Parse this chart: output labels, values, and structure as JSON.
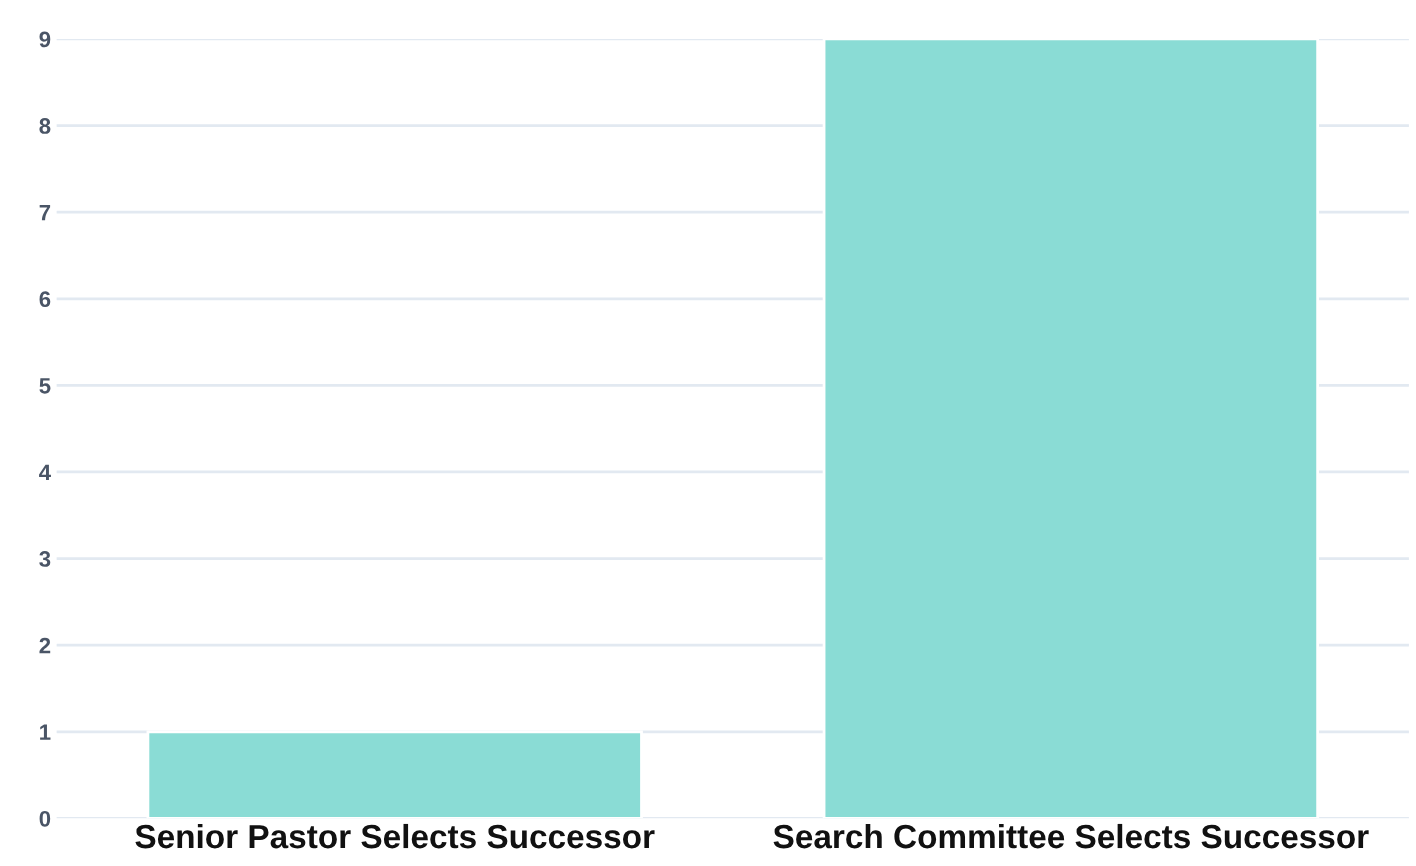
{
  "chart_data": {
    "type": "bar",
    "categories": [
      "Senior Pastor Selects Successor",
      "Search Committee Selects Successor"
    ],
    "values": [
      1,
      9
    ],
    "color": "#8adcd5",
    "ylim": [
      0,
      9
    ],
    "yticks": [
      0,
      1,
      2,
      3,
      4,
      5,
      6,
      7,
      8,
      9
    ],
    "grid": "y"
  }
}
